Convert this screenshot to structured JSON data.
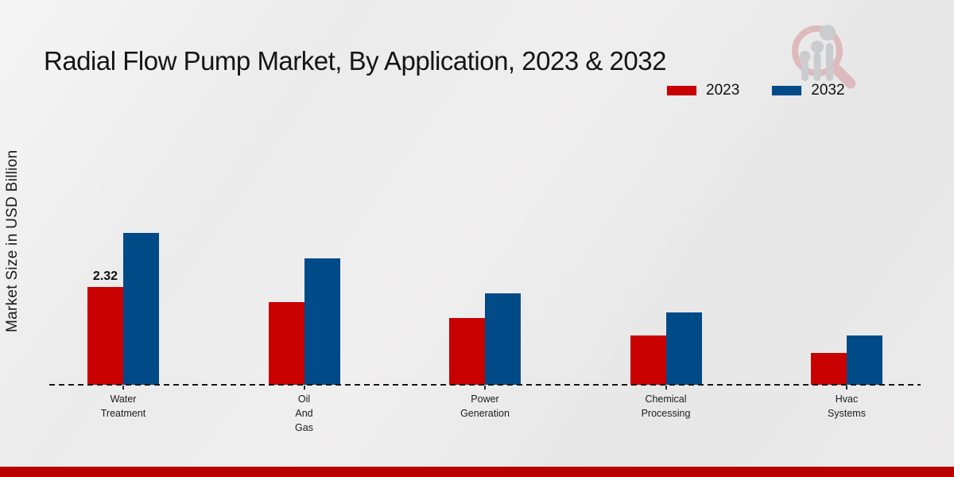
{
  "title": "Radial Flow Pump Market, By Application, 2023 & 2032",
  "y_axis_label": "Market Size in USD Billion",
  "footer_bar_color": "#b90000",
  "brand_logo": "magnifier-bar-chart-watermark",
  "chart_data": {
    "type": "bar",
    "title": "Radial Flow Pump Market, By Application, 2023 & 2032",
    "xlabel": "",
    "ylabel": "Market Size in USD Billion",
    "categories": [
      "Water Treatment",
      "Oil And Gas",
      "Power Generation",
      "Chemical Processing",
      "Hvac Systems"
    ],
    "series": [
      {
        "name": "2023",
        "color": "#c80000",
        "values": [
          2.32,
          1.95,
          1.57,
          1.16,
          0.76
        ]
      },
      {
        "name": "2032",
        "color": "#004a87",
        "values": [
          3.59,
          2.99,
          2.16,
          1.71,
          1.17
        ]
      }
    ],
    "ylim": [
      0,
      4.3
    ],
    "grid": false,
    "legend_position": "top-right",
    "x_axis_style": "dashed-baseline",
    "data_labels": [
      {
        "series": "2023",
        "category": "Water Treatment",
        "value": "2.32"
      }
    ]
  }
}
